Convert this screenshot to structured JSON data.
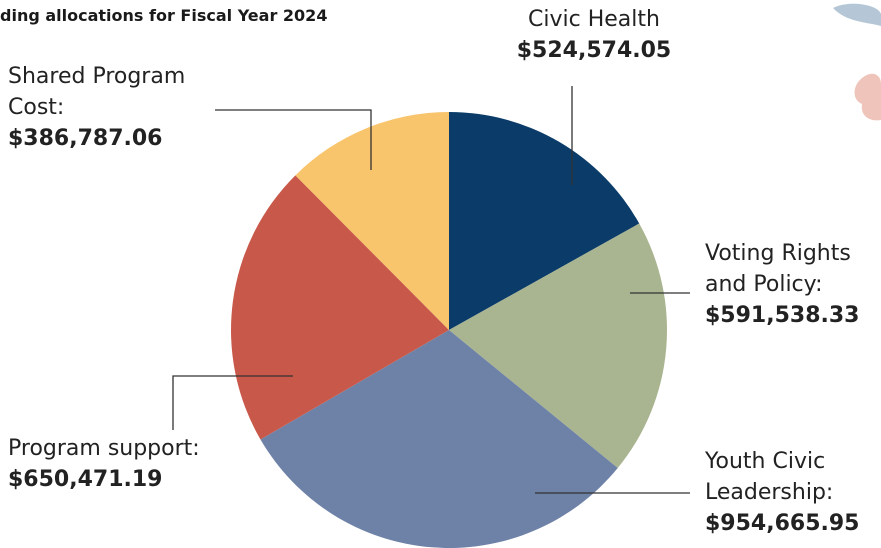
{
  "chart_data": {
    "type": "pie",
    "title": "ding allocations for Fiscal Year 2024",
    "categories": [
      "Civic Health",
      "Voting Rights and Policy:",
      "Youth Civic Leadership:",
      "Program support:",
      "Shared Program Cost:"
    ],
    "values": [
      524574.05,
      591538.33,
      954665.95,
      650471.19,
      386787.06
    ],
    "value_labels": [
      "$524,574.05",
      "$591,538.33",
      "$954,665.95",
      "$650,471.19",
      "$386,787.06"
    ],
    "colors": [
      "#0b3c69",
      "#a9b590",
      "#6e82a7",
      "#c8594a",
      "#f8c46c"
    ]
  }
}
